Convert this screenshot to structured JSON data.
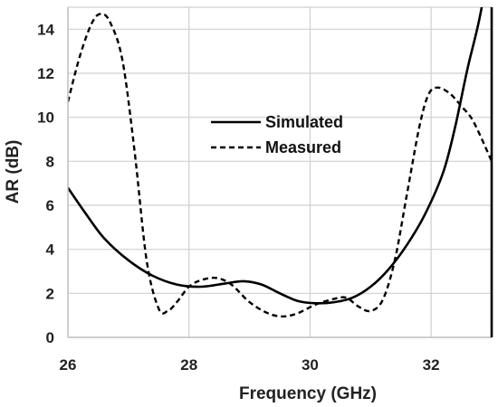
{
  "chart_data": {
    "type": "line",
    "title": "",
    "xlabel": "Frequency (GHz)",
    "ylabel": "AR (dB)",
    "xlim": [
      26,
      33
    ],
    "ylim": [
      0,
      15
    ],
    "xticks": [
      "26",
      "28",
      "30",
      "32"
    ],
    "yticks": [
      "0",
      "2",
      "4",
      "6",
      "8",
      "10",
      "12",
      "14"
    ],
    "grid": true,
    "legend_position": "center",
    "series": [
      {
        "name": "Simulated",
        "style": "solid",
        "color": "#000000",
        "x": [
          26.0,
          26.3,
          26.6,
          27.0,
          27.4,
          27.8,
          28.2,
          28.6,
          28.9,
          29.2,
          29.5,
          29.8,
          30.1,
          30.4,
          30.7,
          31.0,
          31.3,
          31.6,
          31.9,
          32.2,
          32.4,
          32.6,
          32.8,
          33.0
        ],
        "y": [
          6.8,
          5.6,
          4.5,
          3.5,
          2.8,
          2.4,
          2.3,
          2.45,
          2.55,
          2.4,
          2.0,
          1.65,
          1.55,
          1.6,
          1.8,
          2.3,
          3.1,
          4.2,
          5.6,
          7.5,
          9.6,
          12.2,
          14.5,
          17.5
        ]
      },
      {
        "name": "Measured",
        "style": "dashed",
        "color": "#000000",
        "x": [
          26.0,
          26.2,
          26.4,
          26.55,
          26.7,
          26.9,
          27.1,
          27.3,
          27.5,
          27.65,
          27.8,
          28.0,
          28.2,
          28.45,
          28.7,
          29.0,
          29.3,
          29.55,
          29.8,
          30.1,
          30.4,
          30.6,
          30.8,
          31.0,
          31.2,
          31.4,
          31.6,
          31.8,
          31.95,
          32.1,
          32.3,
          32.5,
          32.7,
          33.0
        ],
        "y": [
          10.7,
          12.8,
          14.3,
          14.7,
          14.3,
          12.6,
          8.5,
          3.5,
          1.3,
          1.2,
          1.6,
          2.3,
          2.6,
          2.7,
          2.4,
          1.6,
          1.1,
          0.95,
          1.1,
          1.5,
          1.75,
          1.8,
          1.4,
          1.2,
          1.7,
          3.5,
          6.5,
          9.5,
          11.0,
          11.35,
          11.1,
          10.5,
          9.8,
          8.0
        ]
      }
    ]
  }
}
